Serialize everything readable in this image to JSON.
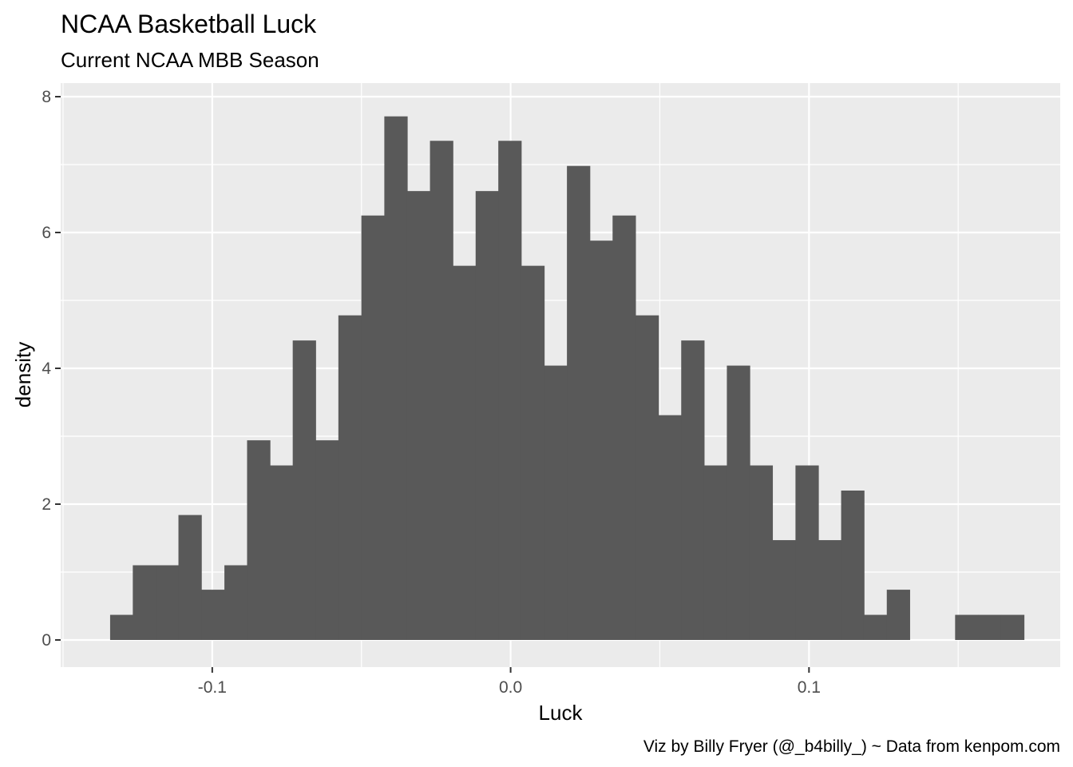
{
  "chart_data": {
    "type": "bar",
    "title": "NCAA Basketball Luck",
    "subtitle": "Current NCAA MBB Season",
    "xlabel": "Luck",
    "ylabel": "density",
    "caption": "Viz by Billy Fryer (@_b4billy_) ~ Data from kenpom.com",
    "xlim": [
      -0.1508,
      0.1842
    ],
    "ylim": [
      -0.4,
      8.2
    ],
    "bin_width": 0.007656,
    "x_ticks": [
      -0.1,
      0.0,
      0.1
    ],
    "x_tick_labels": [
      "-0.1",
      "0.0",
      "0.1"
    ],
    "x_minor": [
      -0.15,
      -0.05,
      0.05,
      0.15
    ],
    "y_ticks": [
      0,
      2,
      4,
      6,
      8
    ],
    "y_tick_labels": [
      "0",
      "2",
      "4",
      "6",
      "8"
    ],
    "y_minor": [
      1,
      3,
      5,
      7
    ],
    "grid": true,
    "colors": {
      "bar": "#595959",
      "panel": "#ebebeb",
      "grid": "#ffffff"
    },
    "bins": [
      {
        "x": -0.1304,
        "density": 0.37
      },
      {
        "x": -0.1228,
        "density": 1.1
      },
      {
        "x": -0.1151,
        "density": 1.1
      },
      {
        "x": -0.1075,
        "density": 1.84
      },
      {
        "x": -0.0998,
        "density": 0.74
      },
      {
        "x": -0.0921,
        "density": 1.1
      },
      {
        "x": -0.0845,
        "density": 2.94
      },
      {
        "x": -0.0768,
        "density": 2.57
      },
      {
        "x": -0.0692,
        "density": 4.41
      },
      {
        "x": -0.0615,
        "density": 2.94
      },
      {
        "x": -0.0539,
        "density": 4.78
      },
      {
        "x": -0.0462,
        "density": 6.25
      },
      {
        "x": -0.0385,
        "density": 7.71
      },
      {
        "x": -0.0309,
        "density": 6.61
      },
      {
        "x": -0.0232,
        "density": 7.35
      },
      {
        "x": -0.0156,
        "density": 5.51
      },
      {
        "x": -0.0079,
        "density": 6.61
      },
      {
        "x": -0.0003,
        "density": 7.35
      },
      {
        "x": 0.0074,
        "density": 5.51
      },
      {
        "x": 0.015,
        "density": 4.04
      },
      {
        "x": 0.0227,
        "density": 6.98
      },
      {
        "x": 0.0304,
        "density": 5.88
      },
      {
        "x": 0.038,
        "density": 6.25
      },
      {
        "x": 0.0457,
        "density": 4.78
      },
      {
        "x": 0.0533,
        "density": 3.31
      },
      {
        "x": 0.061,
        "density": 4.41
      },
      {
        "x": 0.0686,
        "density": 2.57
      },
      {
        "x": 0.0763,
        "density": 4.04
      },
      {
        "x": 0.0839,
        "density": 2.57
      },
      {
        "x": 0.0916,
        "density": 1.47
      },
      {
        "x": 0.0993,
        "density": 2.57
      },
      {
        "x": 0.1069,
        "density": 1.47
      },
      {
        "x": 0.1146,
        "density": 2.2
      },
      {
        "x": 0.1222,
        "density": 0.37
      },
      {
        "x": 0.1299,
        "density": 0.74
      },
      {
        "x": 0.1375,
        "density": 0.0
      },
      {
        "x": 0.1452,
        "density": 0.0
      },
      {
        "x": 0.1528,
        "density": 0.37
      },
      {
        "x": 0.1605,
        "density": 0.37
      },
      {
        "x": 0.1682,
        "density": 0.37
      }
    ]
  }
}
